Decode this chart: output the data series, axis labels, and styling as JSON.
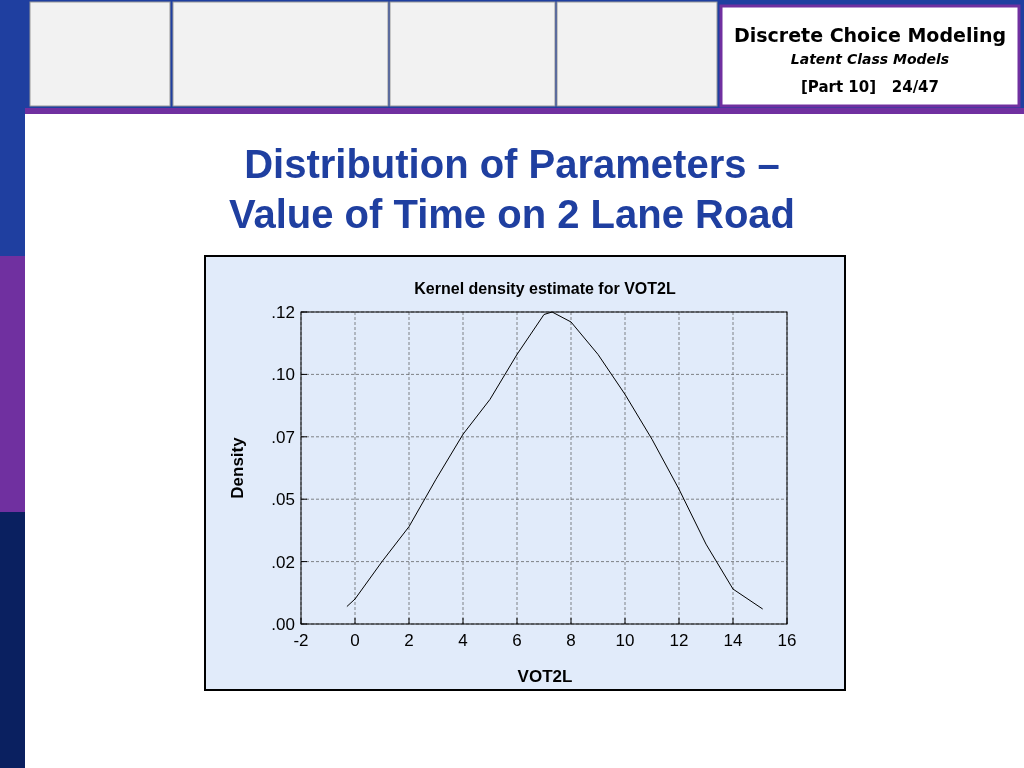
{
  "chart_data": {
    "type": "line",
    "title": "Distribution of Parameters – Value of Time on 2 Lane Road",
    "subtitle": "Kernel density estimate for VOT2L",
    "xlabel": "VOT2L",
    "ylabel": "Density",
    "annotations": [
      "Discrete Choice Modeling",
      "Latent Class Models",
      "[Part 10]   24/47"
    ],
    "series": [
      {
        "color": "#000000",
        "x": [
          -0.3,
          0,
          1,
          2,
          3,
          4,
          5,
          6,
          7,
          7.3,
          8,
          9,
          10,
          11,
          12,
          13,
          14,
          15.1
        ],
        "values": [
          0.007,
          0.01,
          0.025,
          0.039,
          0.058,
          0.076,
          0.09,
          0.108,
          0.124,
          0.125,
          0.121,
          0.108,
          0.092,
          0.074,
          0.054,
          0.032,
          0.014,
          0.006
        ]
      }
    ],
    "xlim": [
      -2,
      16
    ],
    "xticks": [
      -2,
      0,
      2,
      4,
      6,
      8,
      10,
      12,
      14,
      16
    ],
    "ylim": [
      0,
      0.125
    ],
    "yticks": [
      {
        "value": 0,
        "label": ".00"
      },
      {
        "value": 0.025,
        "label": ".02"
      },
      {
        "value": 0.05,
        "label": ".05"
      },
      {
        "value": 0.075,
        "label": ".07"
      },
      {
        "value": 0.1,
        "label": ".10"
      },
      {
        "value": 0.125,
        "label": ".12"
      }
    ],
    "grid": true,
    "marker": "none",
    "line_style": "solid"
  }
}
